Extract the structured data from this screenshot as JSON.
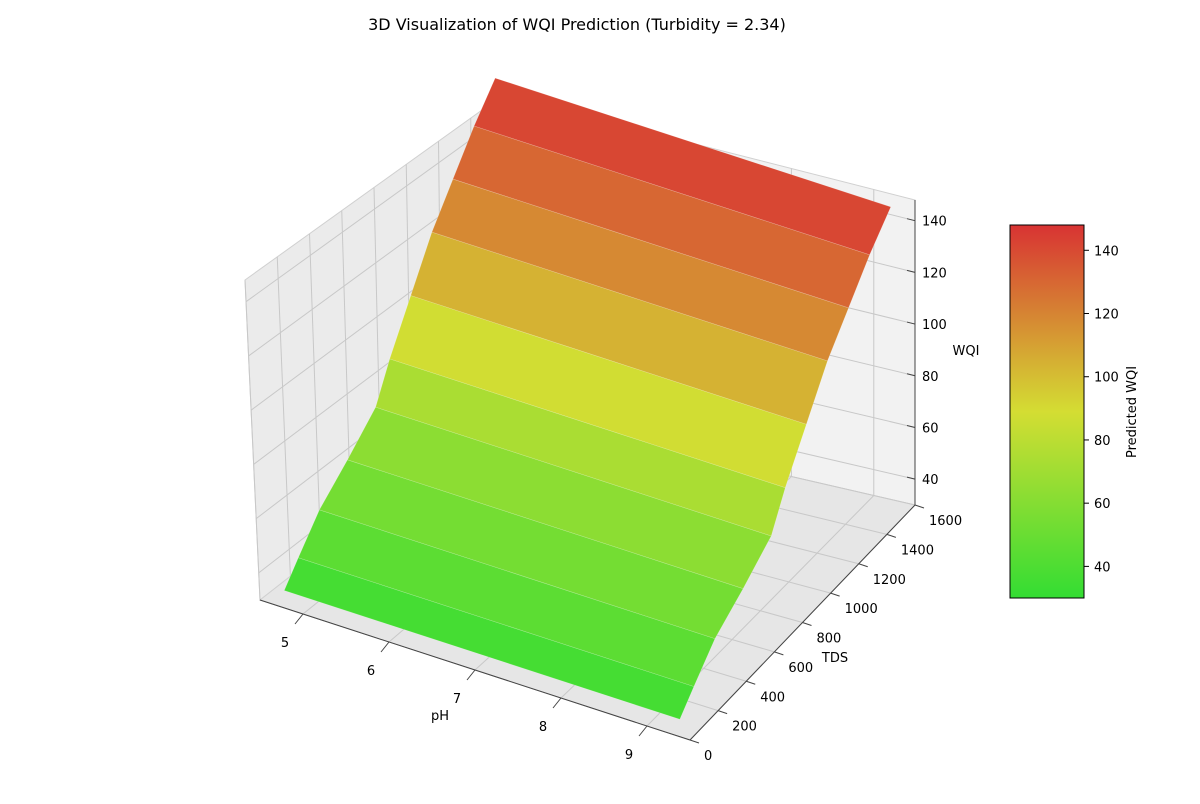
{
  "chart_data": {
    "type": "surface",
    "title": "3D Visualization of WQI Prediction (Turbidity = 2.34)",
    "axes": {
      "x": {
        "label": "pH",
        "ticks": [
          5,
          6,
          7,
          8,
          9
        ],
        "range": [
          4.5,
          9.5
        ]
      },
      "y": {
        "label": "TDS",
        "ticks": [
          0,
          200,
          400,
          600,
          800,
          1000,
          1200,
          1400,
          1600
        ],
        "range": [
          0,
          1600
        ]
      },
      "z": {
        "label": "WQI",
        "ticks": [
          40,
          60,
          80,
          100,
          120,
          140
        ],
        "range": [
          30,
          148
        ]
      }
    },
    "colorbar": {
      "label": "Predicted WQI",
      "ticks": [
        40,
        60,
        80,
        100,
        120,
        140
      ],
      "range": [
        30,
        148
      ]
    },
    "colormap": [
      "#33dd33",
      "#d4dd33",
      "#d83333"
    ],
    "surface": {
      "ph": [
        5,
        6,
        7,
        8,
        9
      ],
      "tds_levels": [
        50,
        150,
        300,
        500,
        700,
        800,
        950,
        1100,
        1250,
        1400,
        1550
      ],
      "wqi_levels": [
        33,
        40,
        50,
        58,
        67,
        80,
        96,
        112,
        124,
        136,
        146
      ]
    },
    "grid": true
  }
}
